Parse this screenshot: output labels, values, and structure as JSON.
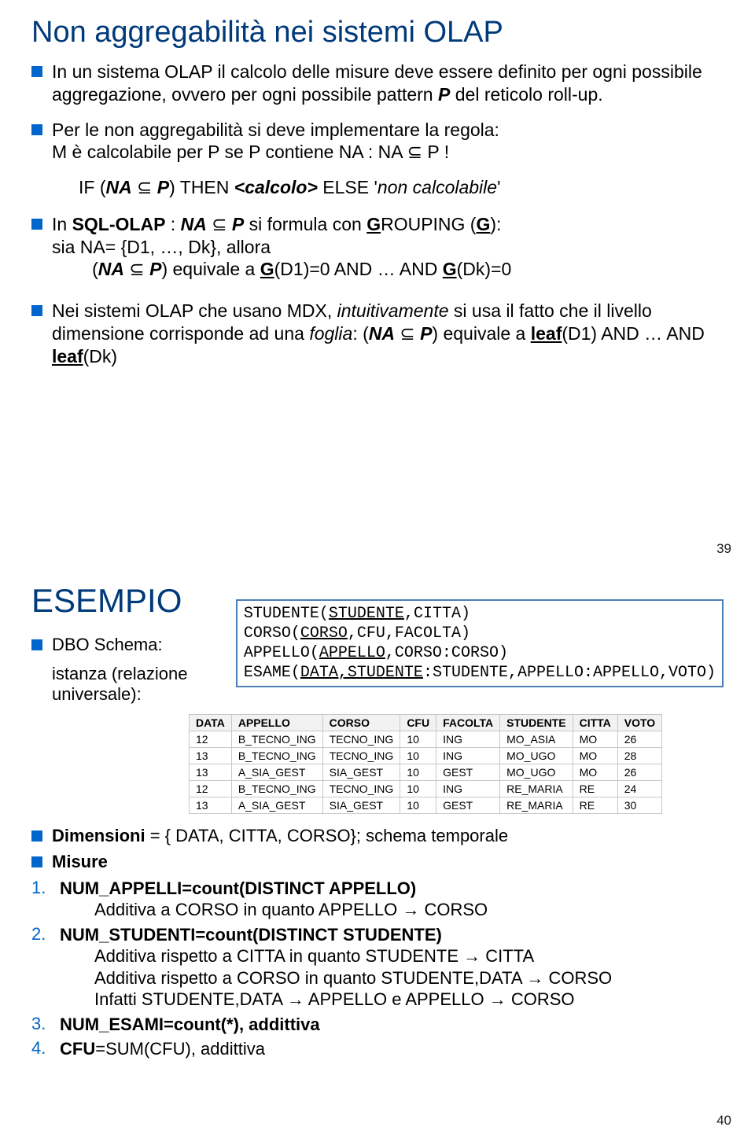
{
  "slide1": {
    "title": "Non aggregabilità nei sistemi OLAP",
    "b1": "In un sistema OLAP il calcolo delle misure deve essere definito per ogni possibile aggregazione, ovvero per ogni possibile pattern ",
    "b1_i1": "P",
    "b1_t2": " del reticolo roll-up.",
    "b2": "Per le non aggregabilità si deve implementare la regola:",
    "b2_sub": "M è calcolabile per P se P contiene NA   : NA ⊆ P !",
    "b2_if": "IF  (",
    "b2_if_na": "NA",
    "b2_if_sub": " ⊆ ",
    "b2_if_p": "P",
    "b2_if_then": ") THEN ",
    "b2_if_calc": "<calcolo>",
    "b2_if_else": " ELSE '",
    "b2_if_non": "non calcolabile",
    "b2_if_end": "'",
    "b3_pre": "In ",
    "b3_sql": "SQL-OLAP",
    "b3_mid": " : ",
    "b3_na": "NA",
    "b3_sub": " ⊆ ",
    "b3_p": "P",
    "b3_post": " si formula con ",
    "b3_g": "G",
    "b3_roup": "ROUPING (",
    "b3_g2": "G",
    "b3_close": "):",
    "b3_sia": "sia NA= {D1, …, Dk}, allora",
    "b3_eq_open": "(",
    "b3_eq_na": "NA",
    "b3_eq_sub": " ⊆ ",
    "b3_eq_p": "P",
    "b3_eq_rest": ") equivale a ",
    "b3_eq_g1": "G",
    "b3_eq_d1": "(D1)=0 AND … AND ",
    "b3_eq_g2": "G",
    "b3_eq_dk": "(Dk)=0",
    "b4_pre": "Nei sistemi OLAP che usano MDX, ",
    "b4_it": "intuitivamente",
    "b4_mid": " si usa il fatto che il livello dimensione corrisponde ad una ",
    "b4_foglia": "foglia",
    "b4_colon": ":  (",
    "b4_na": "NA",
    "b4_sub": " ⊆ ",
    "b4_p": "P",
    "b4_rest": ") equivale a ",
    "b4_leaf1": "leaf",
    "b4_d1": "(D1) AND … AND ",
    "b4_leaf2": "leaf",
    "b4_dk": "(Dk)",
    "pagenum": "39"
  },
  "slide2": {
    "title": "ESEMPIO",
    "dbo": "DBO Schema:",
    "istanza": "istanza (relazione universale):",
    "schema_l1_a": "STUDENTE(",
    "schema_l1_u": "STUDENTE",
    "schema_l1_b": ",CITTA)",
    "schema_l2_a": "CORSO(",
    "schema_l2_u": "CORSO",
    "schema_l2_b": ",CFU,FACOLTA)",
    "schema_l3_a": "APPELLO(",
    "schema_l3_u": "APPELLO",
    "schema_l3_b": ",CORSO:CORSO)",
    "schema_l4_a": "ESAME(",
    "schema_l4_u": "DATA,STUDENTE",
    "schema_l4_b": ":STUDENTE,APPELLO:APPELLO,VOTO)",
    "table": {
      "columns": [
        "DATA",
        "APPELLO",
        "CORSO",
        "CFU",
        "FACOLTA",
        "STUDENTE",
        "CITTA",
        "VOTO"
      ],
      "rows": [
        [
          "12",
          "B_TECNO_ING",
          "TECNO_ING",
          "10",
          "ING",
          "MO_ASIA",
          "MO",
          "26"
        ],
        [
          "13",
          "B_TECNO_ING",
          "TECNO_ING",
          "10",
          "ING",
          "MO_UGO",
          "MO",
          "28"
        ],
        [
          "13",
          "A_SIA_GEST",
          "SIA_GEST",
          "10",
          "GEST",
          "MO_UGO",
          "MO",
          "26"
        ],
        [
          "12",
          "B_TECNO_ING",
          "TECNO_ING",
          "10",
          "ING",
          "RE_MARIA",
          "RE",
          "24"
        ],
        [
          "13",
          "A_SIA_GEST",
          "SIA_GEST",
          "10",
          "GEST",
          "RE_MARIA",
          "RE",
          "30"
        ]
      ]
    },
    "dim_b": "Dimensioni",
    "dim_rest": " = { DATA, CITTA, CORSO}; schema temporale",
    "mis": "Misure",
    "n1": "NUM_APPELLI=count(DISTINCT APPELLO)",
    "n1_sub": "Additiva a CORSO in quanto APPELLO → CORSO",
    "n2": "NUM_STUDENTI=count(DISTINCT STUDENTE)",
    "n2_s1": "Additiva rispetto a CITTA in quanto STUDENTE → CITTA",
    "n2_s2": "Additiva rispetto a CORSO in quanto STUDENTE,DATA → CORSO",
    "n2_s3": "Infatti STUDENTE,DATA → APPELLO e APPELLO → CORSO",
    "n3": "NUM_ESAMI=count(*), addittiva",
    "n4": "CFU",
    "n4_rest": "=SUM(CFU),  addittiva",
    "pagenum": "40",
    "num1": "1.",
    "num2": "2.",
    "num3": "3.",
    "num4": "4."
  }
}
